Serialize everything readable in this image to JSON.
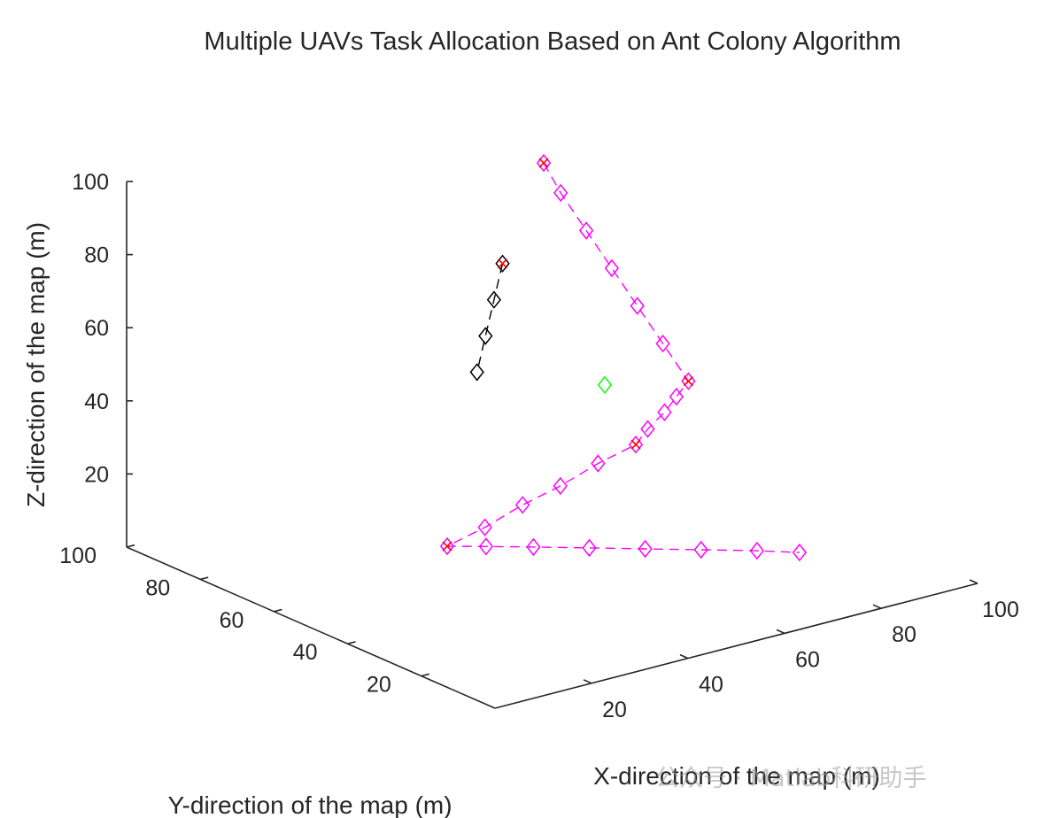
{
  "chart_data": {
    "type": "line3d",
    "title": "Multiple UAVs Task Allocation Based on Ant Colony Algorithm",
    "xlabel": "X-direction of the map (m)",
    "ylabel": "Y-direction of the map (m)",
    "zlabel": "Z-direction of the map (m)",
    "xlim": [
      0,
      100
    ],
    "ylim": [
      0,
      100
    ],
    "zlim": [
      0,
      100
    ],
    "x_ticks": [
      "20",
      "40",
      "60",
      "80",
      "100"
    ],
    "y_ticks": [
      "20",
      "40",
      "60",
      "80",
      "100"
    ],
    "z_ticks": [
      "20",
      "40",
      "60",
      "80",
      "100"
    ],
    "grid": false,
    "series": [
      {
        "color": "#ff00ff",
        "line_style": "dashed",
        "marker": "diamond",
        "points": [
          {
            "x": 62,
            "y": 68,
            "z": 98
          },
          {
            "x": 64,
            "y": 66,
            "z": 90
          },
          {
            "x": 67,
            "y": 63,
            "z": 80
          },
          {
            "x": 70,
            "y": 60,
            "z": 70
          },
          {
            "x": 73,
            "y": 57,
            "z": 60
          },
          {
            "x": 76,
            "y": 54,
            "z": 50
          },
          {
            "x": 79,
            "y": 51,
            "z": 40
          },
          {
            "x": 75,
            "y": 49,
            "z": 38
          },
          {
            "x": 71,
            "y": 47,
            "z": 36
          },
          {
            "x": 66,
            "y": 45,
            "z": 34
          },
          {
            "x": 62,
            "y": 43,
            "z": 32
          },
          {
            "x": 58,
            "y": 48,
            "z": 26
          },
          {
            "x": 54,
            "y": 53,
            "z": 19
          },
          {
            "x": 50,
            "y": 58,
            "z": 13
          },
          {
            "x": 46,
            "y": 63,
            "z": 6
          },
          {
            "x": 42,
            "y": 68,
            "z": 0
          },
          {
            "x": 47,
            "y": 64,
            "z": 0
          },
          {
            "x": 53,
            "y": 59,
            "z": 0
          },
          {
            "x": 60,
            "y": 53,
            "z": 0
          },
          {
            "x": 67,
            "y": 47,
            "z": 0
          },
          {
            "x": 74,
            "y": 41,
            "z": 0
          },
          {
            "x": 81,
            "y": 35,
            "z": 0
          },
          {
            "x": 86,
            "y": 30,
            "z": 0
          }
        ]
      },
      {
        "color": "#000000",
        "line_style": "dashed",
        "marker": "diamond",
        "points": [
          {
            "x": 55,
            "y": 70,
            "z": 72
          },
          {
            "x": 54,
            "y": 71,
            "z": 62
          },
          {
            "x": 53,
            "y": 72,
            "z": 52
          },
          {
            "x": 52,
            "y": 73,
            "z": 42
          }
        ]
      },
      {
        "color": "#00ff00",
        "line_style": "none",
        "marker": "diamond",
        "points": [
          {
            "x": 67,
            "y": 58,
            "z": 40
          }
        ]
      }
    ],
    "targets": {
      "color": "#ff0000",
      "marker": "x",
      "points": [
        {
          "x": 62,
          "y": 68,
          "z": 98
        },
        {
          "x": 79,
          "y": 51,
          "z": 40
        },
        {
          "x": 62,
          "y": 43,
          "z": 32
        },
        {
          "x": 42,
          "y": 68,
          "z": 0
        },
        {
          "x": 55,
          "y": 70,
          "z": 72
        }
      ]
    }
  },
  "watermark": {
    "text": "公众号 · Matlab科研助手"
  }
}
